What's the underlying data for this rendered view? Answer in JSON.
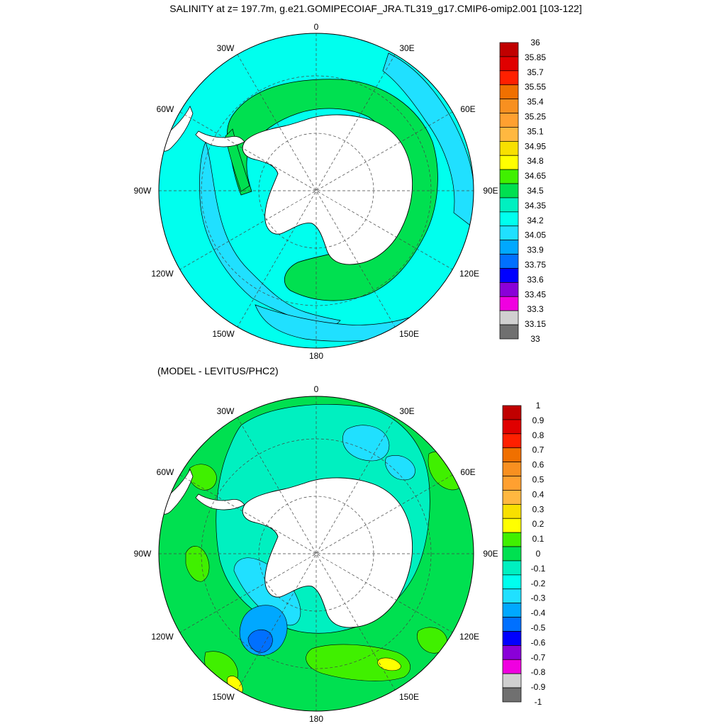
{
  "title": "SALINITY at z= 197.7m, g.e21.GOMIPECOIAF_JRA.TL319_g17.CMIP6-omip2.001 [103-122]",
  "subtitle": "(MODEL - LEVITUS/PHC2)",
  "longitude_labels": {
    "lon_0": "0",
    "lon_30e": "30E",
    "lon_60e": "60E",
    "lon_90e": "90E",
    "lon_120e": "120E",
    "lon_150e": "150E",
    "lon_180": "180",
    "lon_150w": "150W",
    "lon_120w": "120W",
    "lon_90w": "90W",
    "lon_60w": "60W",
    "lon_30w": "30W"
  },
  "colors": {
    "land": "#ffffff",
    "coast": "#000000",
    "grid": "#444444"
  },
  "panels": [
    {
      "id": "salinity",
      "colorbar": {
        "labels": [
          "36",
          "35.85",
          "35.7",
          "35.55",
          "35.4",
          "35.25",
          "35.1",
          "34.95",
          "34.8",
          "34.65",
          "34.5",
          "34.35",
          "34.2",
          "34.05",
          "33.9",
          "33.75",
          "33.6",
          "33.45",
          "33.3",
          "33.15",
          "33"
        ],
        "colors": [
          "#c00000",
          "#e00000",
          "#ff2000",
          "#f07000",
          "#f89020",
          "#ffa030",
          "#ffb840",
          "#f8e000",
          "#ffff00",
          "#40f000",
          "#00e050",
          "#00f0c0",
          "#00ffee",
          "#20e0ff",
          "#00a8ff",
          "#0070ff",
          "#0000ff",
          "#8a00d8",
          "#f000e0",
          "#d0d0d0",
          "#707070"
        ]
      }
    },
    {
      "id": "difference",
      "colorbar": {
        "labels": [
          "1",
          "0.9",
          "0.8",
          "0.7",
          "0.6",
          "0.5",
          "0.4",
          "0.3",
          "0.2",
          "0.1",
          "0",
          "-0.1",
          "-0.2",
          "-0.3",
          "-0.4",
          "-0.5",
          "-0.6",
          "-0.7",
          "-0.8",
          "-0.9",
          "-1"
        ],
        "colors": [
          "#c00000",
          "#e00000",
          "#ff2000",
          "#f07000",
          "#f89020",
          "#ffa030",
          "#ffb840",
          "#f8e000",
          "#ffff00",
          "#40f000",
          "#00e050",
          "#00f0c0",
          "#00ffee",
          "#20e0ff",
          "#00a8ff",
          "#0070ff",
          "#0000ff",
          "#8a00d8",
          "#f000e0",
          "#d0d0d0",
          "#707070"
        ]
      }
    }
  ]
}
